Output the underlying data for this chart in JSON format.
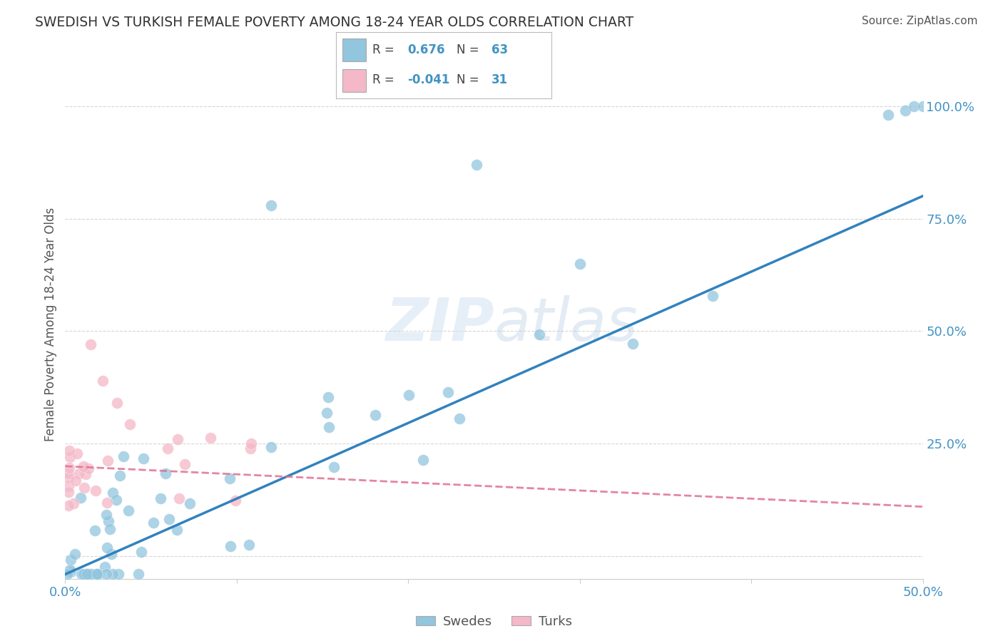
{
  "title": "SWEDISH VS TURKISH FEMALE POVERTY AMONG 18-24 YEAR OLDS CORRELATION CHART",
  "source": "Source: ZipAtlas.com",
  "ylabel": "Female Poverty Among 18-24 Year Olds",
  "xlim": [
    0.0,
    0.5
  ],
  "ylim": [
    -0.05,
    1.08
  ],
  "blue_color": "#92c5de",
  "pink_color": "#f4b8c8",
  "blue_line_color": "#3182bd",
  "pink_line_color": "#e07090",
  "R_blue": 0.676,
  "N_blue": 63,
  "R_pink": -0.041,
  "N_pink": 31,
  "watermark_zip": "ZIP",
  "watermark_atlas": "atlas",
  "bg_color": "#ffffff",
  "grid_color": "#cccccc",
  "label_color": "#4393c3",
  "text_color": "#555555"
}
